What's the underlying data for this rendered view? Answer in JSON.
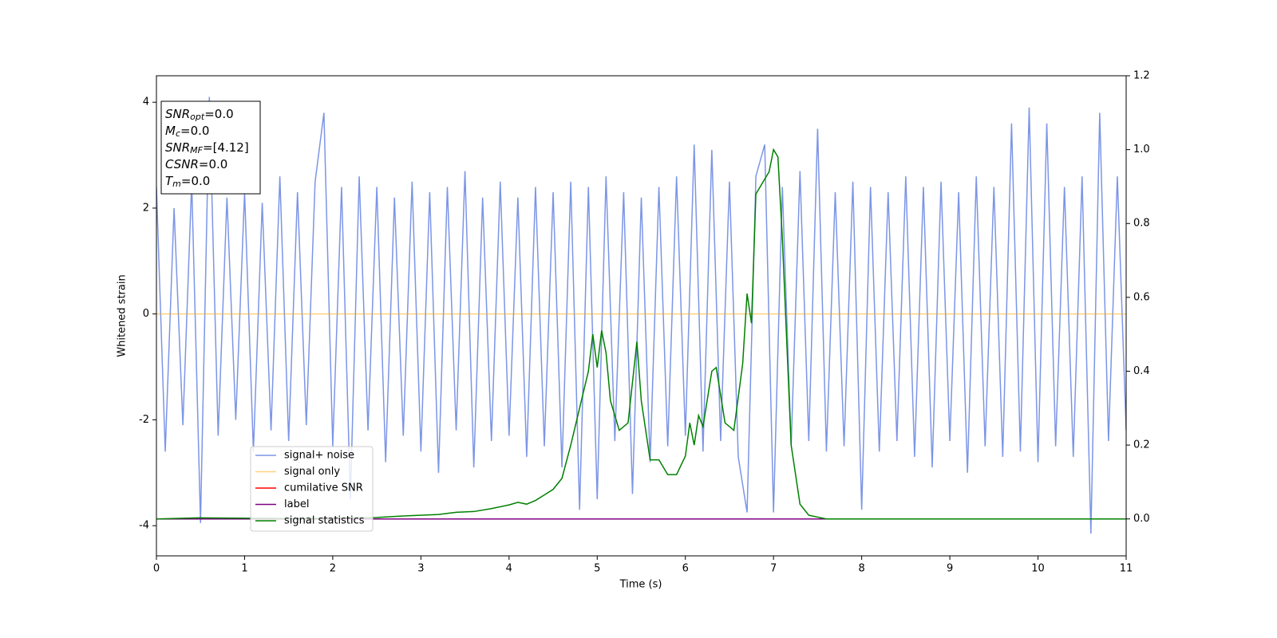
{
  "chart_data": {
    "type": "line",
    "xlabel": "Time (s)",
    "ylabel": "Whitened strain",
    "xlim": [
      0,
      11
    ],
    "xticks": [
      0,
      1,
      2,
      3,
      4,
      5,
      6,
      7,
      8,
      9,
      10,
      11
    ],
    "ylim": [
      -4.57,
      4.5
    ],
    "yticks": [
      -4,
      -2,
      0,
      2,
      4
    ],
    "y2lim": [
      -0.1,
      1.2
    ],
    "y2ticks": [
      {
        "value": 0,
        "label": "0.0"
      },
      {
        "value": 0.2,
        "label": "0.2"
      },
      {
        "value": 0.4,
        "label": "0.4"
      },
      {
        "value": 0.6,
        "label": "0.6"
      },
      {
        "value": 0.8,
        "label": "0.8"
      },
      {
        "value": 1.0,
        "label": "1.0"
      },
      {
        "value": 1.2,
        "label": "1.2"
      }
    ],
    "legend": "lower left",
    "annotations": [
      {
        "main": "SNR",
        "sub": "opt",
        "rest": "=0.0"
      },
      {
        "main": "M",
        "sub": "c",
        "rest": "=0.0"
      },
      {
        "main": "SNR",
        "sub": "MF",
        "rest": "=[4.12]"
      },
      {
        "main": "CSNR",
        "rest": "=0.0"
      },
      {
        "main": "T",
        "sub": "m",
        "rest": "=0.0"
      }
    ],
    "series": [
      {
        "name": "signal+ noise",
        "color": "#5b7be0",
        "opacity": 0.8,
        "x": [
          0.0,
          0.1,
          0.2,
          0.3,
          0.4,
          0.5,
          0.6,
          0.7,
          0.8,
          0.9,
          1.0,
          1.1,
          1.2,
          1.3,
          1.4,
          1.5,
          1.6,
          1.7,
          1.8,
          1.9,
          2.0,
          2.1,
          2.2,
          2.3,
          2.4,
          2.5,
          2.6,
          2.7,
          2.8,
          2.9,
          3.0,
          3.1,
          3.2,
          3.3,
          3.4,
          3.5,
          3.6,
          3.7,
          3.8,
          3.9,
          4.0,
          4.1,
          4.2,
          4.3,
          4.4,
          4.5,
          4.6,
          4.7,
          4.8,
          4.9,
          5.0,
          5.1,
          5.2,
          5.3,
          5.4,
          5.5,
          5.6,
          5.7,
          5.8,
          5.9,
          6.0,
          6.1,
          6.2,
          6.3,
          6.4,
          6.5,
          6.6,
          6.7,
          6.8,
          6.9,
          7.0,
          7.1,
          7.2,
          7.3,
          7.4,
          7.5,
          7.6,
          7.7,
          7.8,
          7.9,
          8.0,
          8.1,
          8.2,
          8.3,
          8.4,
          8.5,
          8.6,
          8.7,
          8.8,
          8.9,
          9.0,
          9.1,
          9.2,
          9.3,
          9.4,
          9.5,
          9.6,
          9.7,
          9.8,
          9.9,
          10.0,
          10.1,
          10.2,
          10.3,
          10.4,
          10.5,
          10.6,
          10.7,
          10.8,
          10.9,
          11.0
        ],
        "values": [
          2.4,
          -2.6,
          2.0,
          -2.1,
          2.5,
          -3.95,
          4.1,
          -2.3,
          2.2,
          -2.0,
          2.3,
          -2.6,
          2.1,
          -2.2,
          2.6,
          -2.4,
          2.3,
          -2.1,
          2.5,
          3.8,
          -2.5,
          2.4,
          -3.5,
          2.6,
          -2.2,
          2.4,
          -2.8,
          2.2,
          -2.3,
          2.5,
          -2.6,
          2.3,
          -3.0,
          2.4,
          -2.2,
          2.7,
          -2.9,
          2.2,
          -2.4,
          2.5,
          -2.3,
          2.2,
          -2.7,
          2.4,
          -2.5,
          2.3,
          -2.9,
          2.5,
          -3.7,
          2.4,
          -3.5,
          2.6,
          -2.4,
          2.3,
          -3.4,
          2.2,
          -2.8,
          2.4,
          -2.5,
          2.6,
          -2.3,
          3.2,
          -2.6,
          3.1,
          -2.4,
          2.5,
          -2.7,
          -3.75,
          2.6,
          3.2,
          -3.75,
          2.4,
          -2.5,
          2.7,
          -2.4,
          3.5,
          -2.6,
          2.3,
          -2.5,
          2.5,
          -3.7,
          2.4,
          -2.6,
          2.3,
          -2.4,
          2.6,
          -2.7,
          2.4,
          -2.9,
          2.5,
          -2.4,
          2.3,
          -3.0,
          2.6,
          -2.5,
          2.4,
          -2.7,
          3.6,
          -2.6,
          3.9,
          -2.8,
          3.6,
          -2.5,
          2.4,
          -2.7,
          2.6,
          -4.15,
          3.8,
          -2.4,
          2.6,
          -2.2
        ]
      },
      {
        "name": "signal only",
        "color": "orange",
        "opacity": 0.5,
        "x": [
          0,
          11
        ],
        "values": [
          0,
          0
        ]
      },
      {
        "name": "cumilative SNR",
        "color": "red",
        "axis": "y2",
        "x": [
          0,
          11
        ],
        "values": [
          0,
          0
        ]
      },
      {
        "name": "label",
        "color": "purple",
        "axis": "y2",
        "x": [
          0,
          11
        ],
        "values": [
          0,
          0
        ]
      },
      {
        "name": "signal statistics",
        "color": "green",
        "axis": "y2",
        "x": [
          0,
          0.5,
          1,
          1.5,
          2,
          2.5,
          2.8,
          3.2,
          3.4,
          3.6,
          3.8,
          4.0,
          4.1,
          4.2,
          4.3,
          4.4,
          4.5,
          4.6,
          4.7,
          4.8,
          4.9,
          4.95,
          5.0,
          5.05,
          5.1,
          5.15,
          5.25,
          5.35,
          5.45,
          5.5,
          5.6,
          5.7,
          5.8,
          5.9,
          6.0,
          6.05,
          6.1,
          6.15,
          6.2,
          6.3,
          6.35,
          6.45,
          6.55,
          6.65,
          6.7,
          6.75,
          6.8,
          6.9,
          6.95,
          7.0,
          7.05,
          7.1,
          7.2,
          7.3,
          7.4,
          7.6,
          11
        ],
        "values": [
          0,
          0.003,
          0.002,
          0.001,
          0.002,
          0.004,
          0.008,
          0.012,
          0.018,
          0.02,
          0.028,
          0.038,
          0.045,
          0.04,
          0.05,
          0.065,
          0.08,
          0.11,
          0.2,
          0.3,
          0.4,
          0.5,
          0.41,
          0.51,
          0.45,
          0.32,
          0.24,
          0.26,
          0.48,
          0.32,
          0.16,
          0.16,
          0.12,
          0.12,
          0.17,
          0.26,
          0.2,
          0.28,
          0.25,
          0.4,
          0.41,
          0.26,
          0.24,
          0.42,
          0.61,
          0.53,
          0.88,
          0.92,
          0.94,
          1.0,
          0.98,
          0.76,
          0.2,
          0.04,
          0.01,
          0,
          0
        ]
      }
    ]
  }
}
